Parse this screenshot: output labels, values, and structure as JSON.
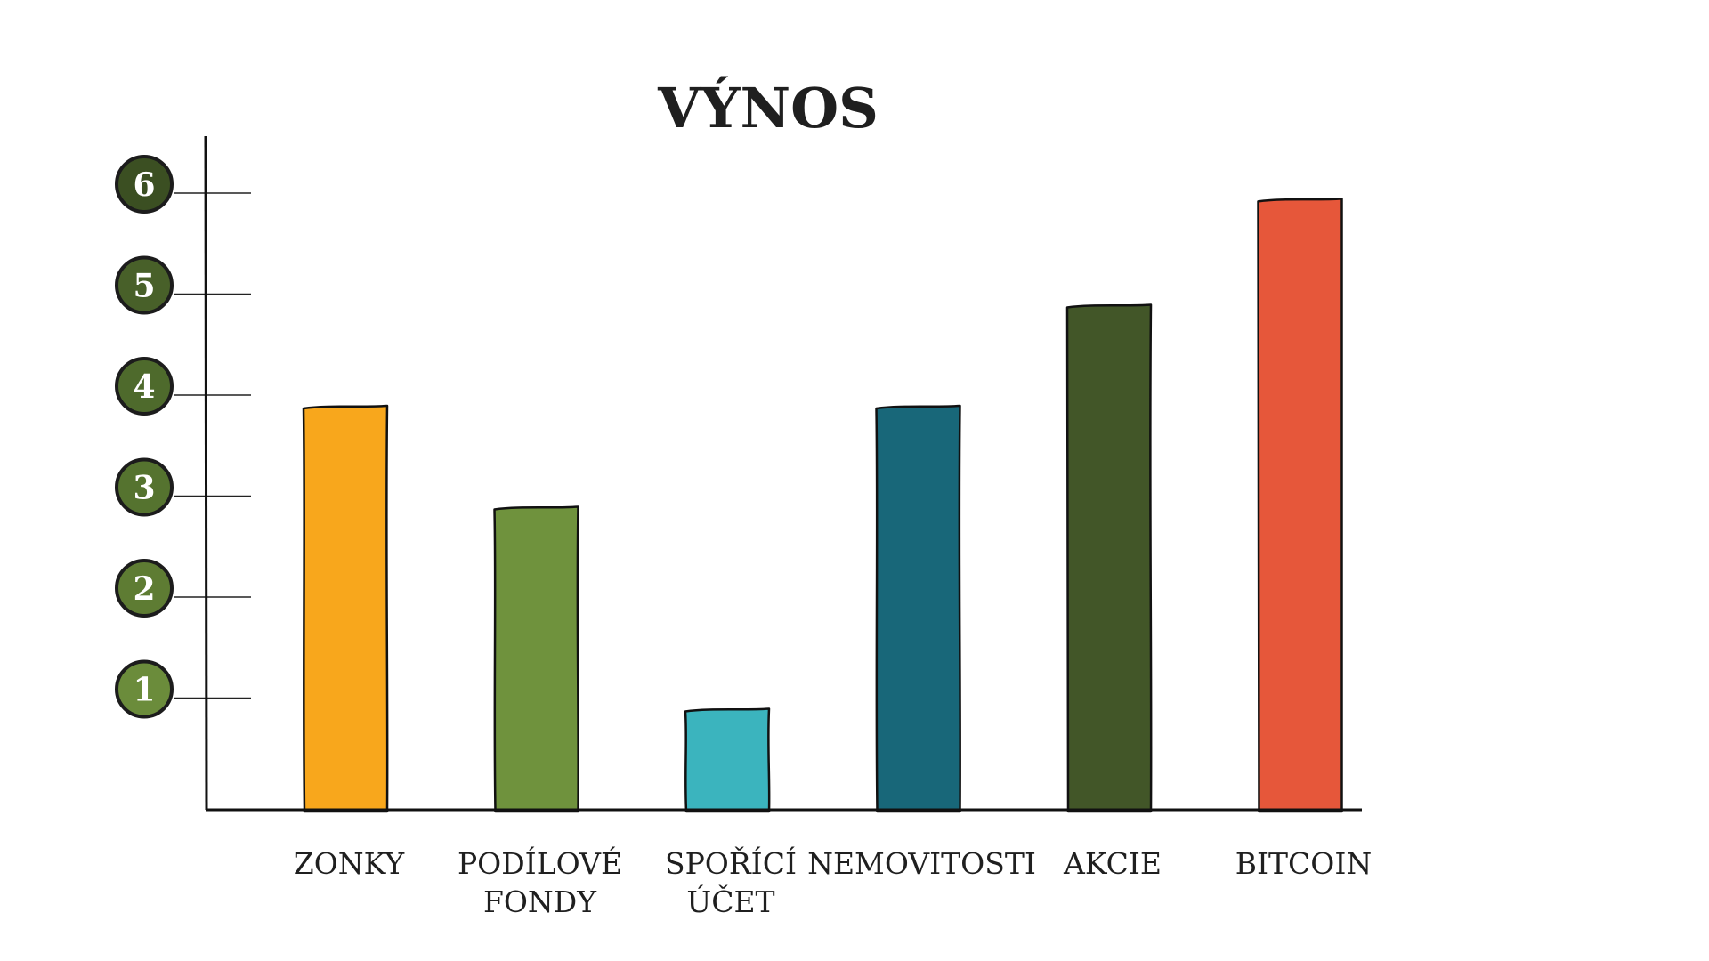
{
  "chart_data": {
    "type": "bar",
    "title": "VÝNOS",
    "xlabel": "",
    "ylabel": "",
    "categories": [
      [
        "ZONKY"
      ],
      [
        "PODÍLOVÉ",
        "FONDY"
      ],
      [
        "SPOŘÍCÍ",
        "ÚČET"
      ],
      [
        "NEMOVITOSTI"
      ],
      [
        "AKCIE"
      ],
      [
        "BITCOIN"
      ]
    ],
    "values": [
      4,
      3,
      1,
      4,
      5,
      6.05
    ],
    "bar_colors": [
      "#F8A71C",
      "#6F923D",
      "#3BB4BE",
      "#186779",
      "#425628",
      "#E6573A"
    ],
    "y_ticks": [
      1,
      2,
      3,
      4,
      5,
      6
    ],
    "y_tick_colors": [
      "#6B8C3B",
      "#5E7C33",
      "#55732F",
      "#4E6A2C",
      "#486029",
      "#3B4F22"
    ],
    "ylim": [
      0,
      6.6
    ],
    "grid": false,
    "legend": "none"
  }
}
